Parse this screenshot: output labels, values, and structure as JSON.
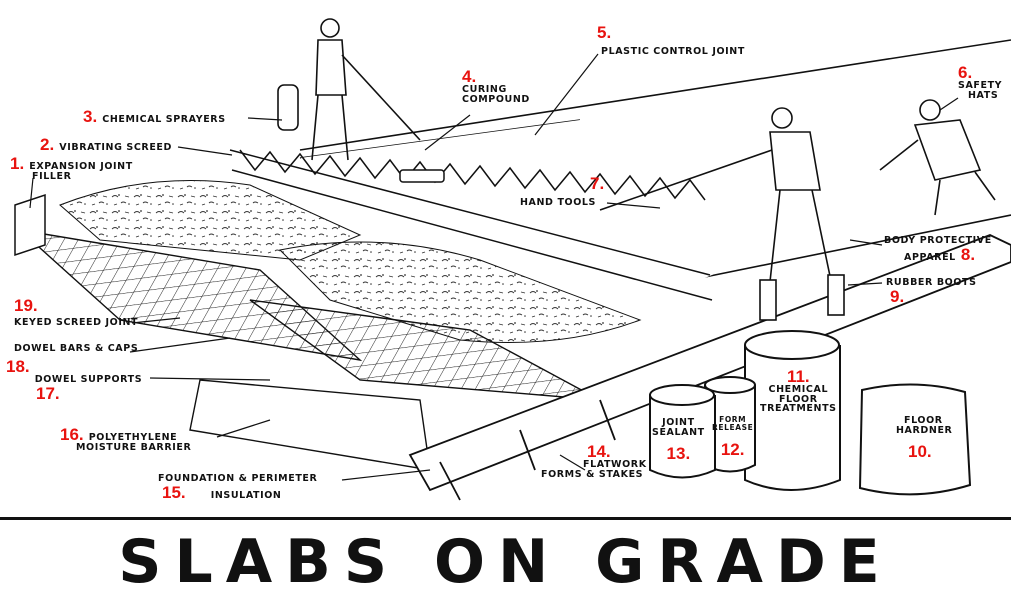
{
  "title": "SLABS ON GRADE",
  "colors": {
    "number": "#e8130f",
    "ink": "#111111",
    "background": "#ffffff"
  },
  "callouts": [
    {
      "number": "1.",
      "label": "EXPANSION JOINT",
      "label_line2": "FILLER"
    },
    {
      "number": "2.",
      "label": "VIBRATING SCREED"
    },
    {
      "number": "3.",
      "label": "CHEMICAL SPRAYERS"
    },
    {
      "number": "4.",
      "label": "CURING",
      "label_line2": "COMPOUND"
    },
    {
      "number": "5.",
      "label": "PLASTIC CONTROL JOINT"
    },
    {
      "number": "6.",
      "label": "SAFETY",
      "label_line2": "HATS"
    },
    {
      "number": "7.",
      "label": "HAND TOOLS"
    },
    {
      "number": "8.",
      "label": "BODY PROTECTIVE",
      "label_line2": "APPAREL"
    },
    {
      "number": "9.",
      "label": "RUBBER BOOTS"
    },
    {
      "number": "10.",
      "label": "FLOOR",
      "label_line2": "HARDNER"
    },
    {
      "number": "11.",
      "label": "CHEMICAL",
      "label_line2": "FLOOR",
      "label_line3": "TREATMENTS"
    },
    {
      "number": "12.",
      "label": "FORM",
      "label_line2": "RELEASE"
    },
    {
      "number": "13.",
      "label": "JOINT",
      "label_line2": "SEALANT"
    },
    {
      "number": "14.",
      "label": "FLATWORK",
      "label_line2": "FORMS & STAKES"
    },
    {
      "number": "15.",
      "label": "FOUNDATION & PERIMETER",
      "label_line2": "INSULATION"
    },
    {
      "number": "16.",
      "label": "POLYETHYLENE",
      "label_line2": "MOISTURE BARRIER"
    },
    {
      "number": "17.",
      "label": "DOWEL SUPPORTS"
    },
    {
      "number": "18.",
      "label": "DOWEL BARS & CAPS"
    },
    {
      "number": "19.",
      "label": "KEYED SCREED JOINT"
    }
  ]
}
